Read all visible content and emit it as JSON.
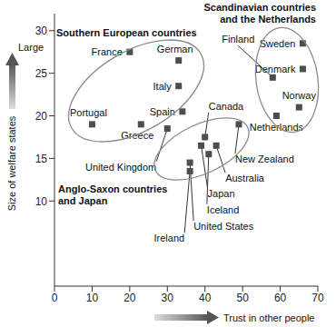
{
  "chart_data": {
    "type": "scatter",
    "x_label": "Trust in other people",
    "y_label": "Size of welfare states",
    "annotations": [
      "Large"
    ],
    "xlim": [
      0,
      70
    ],
    "xticks": [
      0,
      10,
      20,
      30,
      40,
      50,
      60,
      70
    ],
    "ylim": [
      0,
      32
    ],
    "yticks": [
      10,
      15,
      20,
      25,
      30
    ],
    "grid": false,
    "groups": [
      {
        "lines": [
          "Southern European countries"
        ],
        "color": "#8a8a8a"
      },
      {
        "lines": [
          "Scandinavian countries",
          "and the Netherlands"
        ],
        "color": "#8a8a8a"
      },
      {
        "lines": [
          "Anglo-Saxon countries",
          "and Japan"
        ],
        "color": "#8a8a8a"
      }
    ],
    "series": [
      {
        "color": "#4d4d4d",
        "marker": "square",
        "points": [
          {
            "label": "France",
            "x": 20,
            "y": 27.5
          },
          {
            "label": "German",
            "x": 33,
            "y": 26.5
          },
          {
            "label": "Italy",
            "x": 33,
            "y": 23.5
          },
          {
            "label": "Spain",
            "x": 34,
            "y": 20.5
          },
          {
            "label": "Portugal",
            "x": 10,
            "y": 19
          },
          {
            "label": "Greece",
            "x": 23,
            "y": 19
          },
          {
            "label": "United Kingdom",
            "x": 30,
            "y": 18.5
          },
          {
            "label": "Canada",
            "x": 40,
            "y": 17.5
          },
          {
            "label": "New Zealand",
            "x": 49,
            "y": 19
          },
          {
            "label": "Australia",
            "x": 43,
            "y": 16.5
          },
          {
            "label": "Japan",
            "x": 39,
            "y": 16.5
          },
          {
            "label": "Iceland",
            "x": 41,
            "y": 15.5
          },
          {
            "label": "United States",
            "x": 36,
            "y": 14.5
          },
          {
            "label": "Ireland",
            "x": 36,
            "y": 13.5
          },
          {
            "label": "Finland",
            "x": 58,
            "y": 24.5
          },
          {
            "label": "Sweden",
            "x": 66,
            "y": 28.5
          },
          {
            "label": "Denmark",
            "x": 66,
            "y": 25.5
          },
          {
            "label": "Norway",
            "x": 65,
            "y": 21
          },
          {
            "label": "Netherlands",
            "x": 59,
            "y": 20
          }
        ]
      }
    ]
  }
}
